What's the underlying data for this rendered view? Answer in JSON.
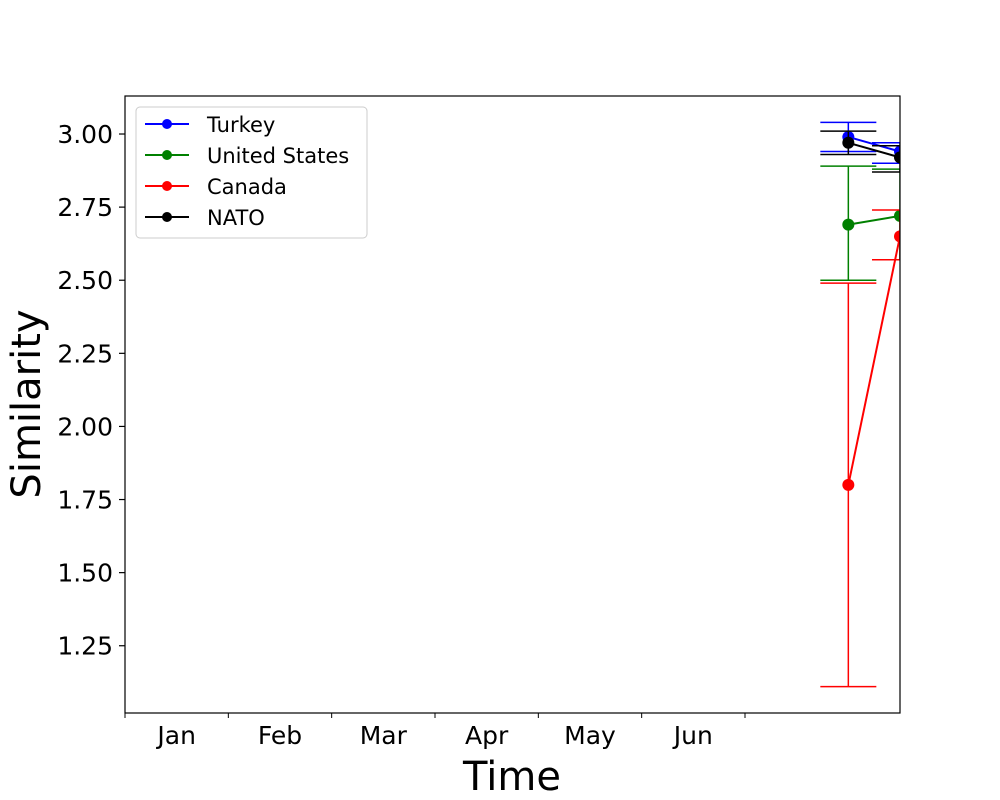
{
  "chart_data": {
    "type": "line",
    "xlabel": "Time",
    "ylabel": "Similarity",
    "x_ticks": [
      "Jan",
      "Feb",
      "Mar",
      "Apr",
      "May",
      "Jun"
    ],
    "y_ticks": [
      "1.25",
      "1.50",
      "1.75",
      "2.00",
      "2.25",
      "2.50",
      "2.75",
      "3.00"
    ],
    "ylim": [
      1.02,
      3.13
    ],
    "xlim": [
      0.0,
      7.5
    ],
    "grid": false,
    "legend_position": "top-left",
    "x": [
      7.0,
      7.5
    ],
    "series": [
      {
        "name": "Turkey",
        "color": "#0000ff",
        "values": [
          2.99,
          2.94
        ],
        "err_low": [
          2.94,
          2.9
        ],
        "err_high": [
          3.04,
          2.97
        ]
      },
      {
        "name": "United States",
        "color": "#008000",
        "values": [
          2.69,
          2.72
        ],
        "err_low": [
          2.5,
          2.57
        ],
        "err_high": [
          2.89,
          2.88
        ]
      },
      {
        "name": "Canada",
        "color": "#ff0000",
        "values": [
          1.8,
          2.65
        ],
        "err_low": [
          1.11,
          2.57
        ],
        "err_high": [
          2.49,
          2.74
        ]
      },
      {
        "name": "NATO",
        "color": "#000000",
        "values": [
          2.97,
          2.92
        ],
        "err_low": [
          2.93,
          2.87
        ],
        "err_high": [
          3.01,
          2.96
        ]
      }
    ]
  }
}
